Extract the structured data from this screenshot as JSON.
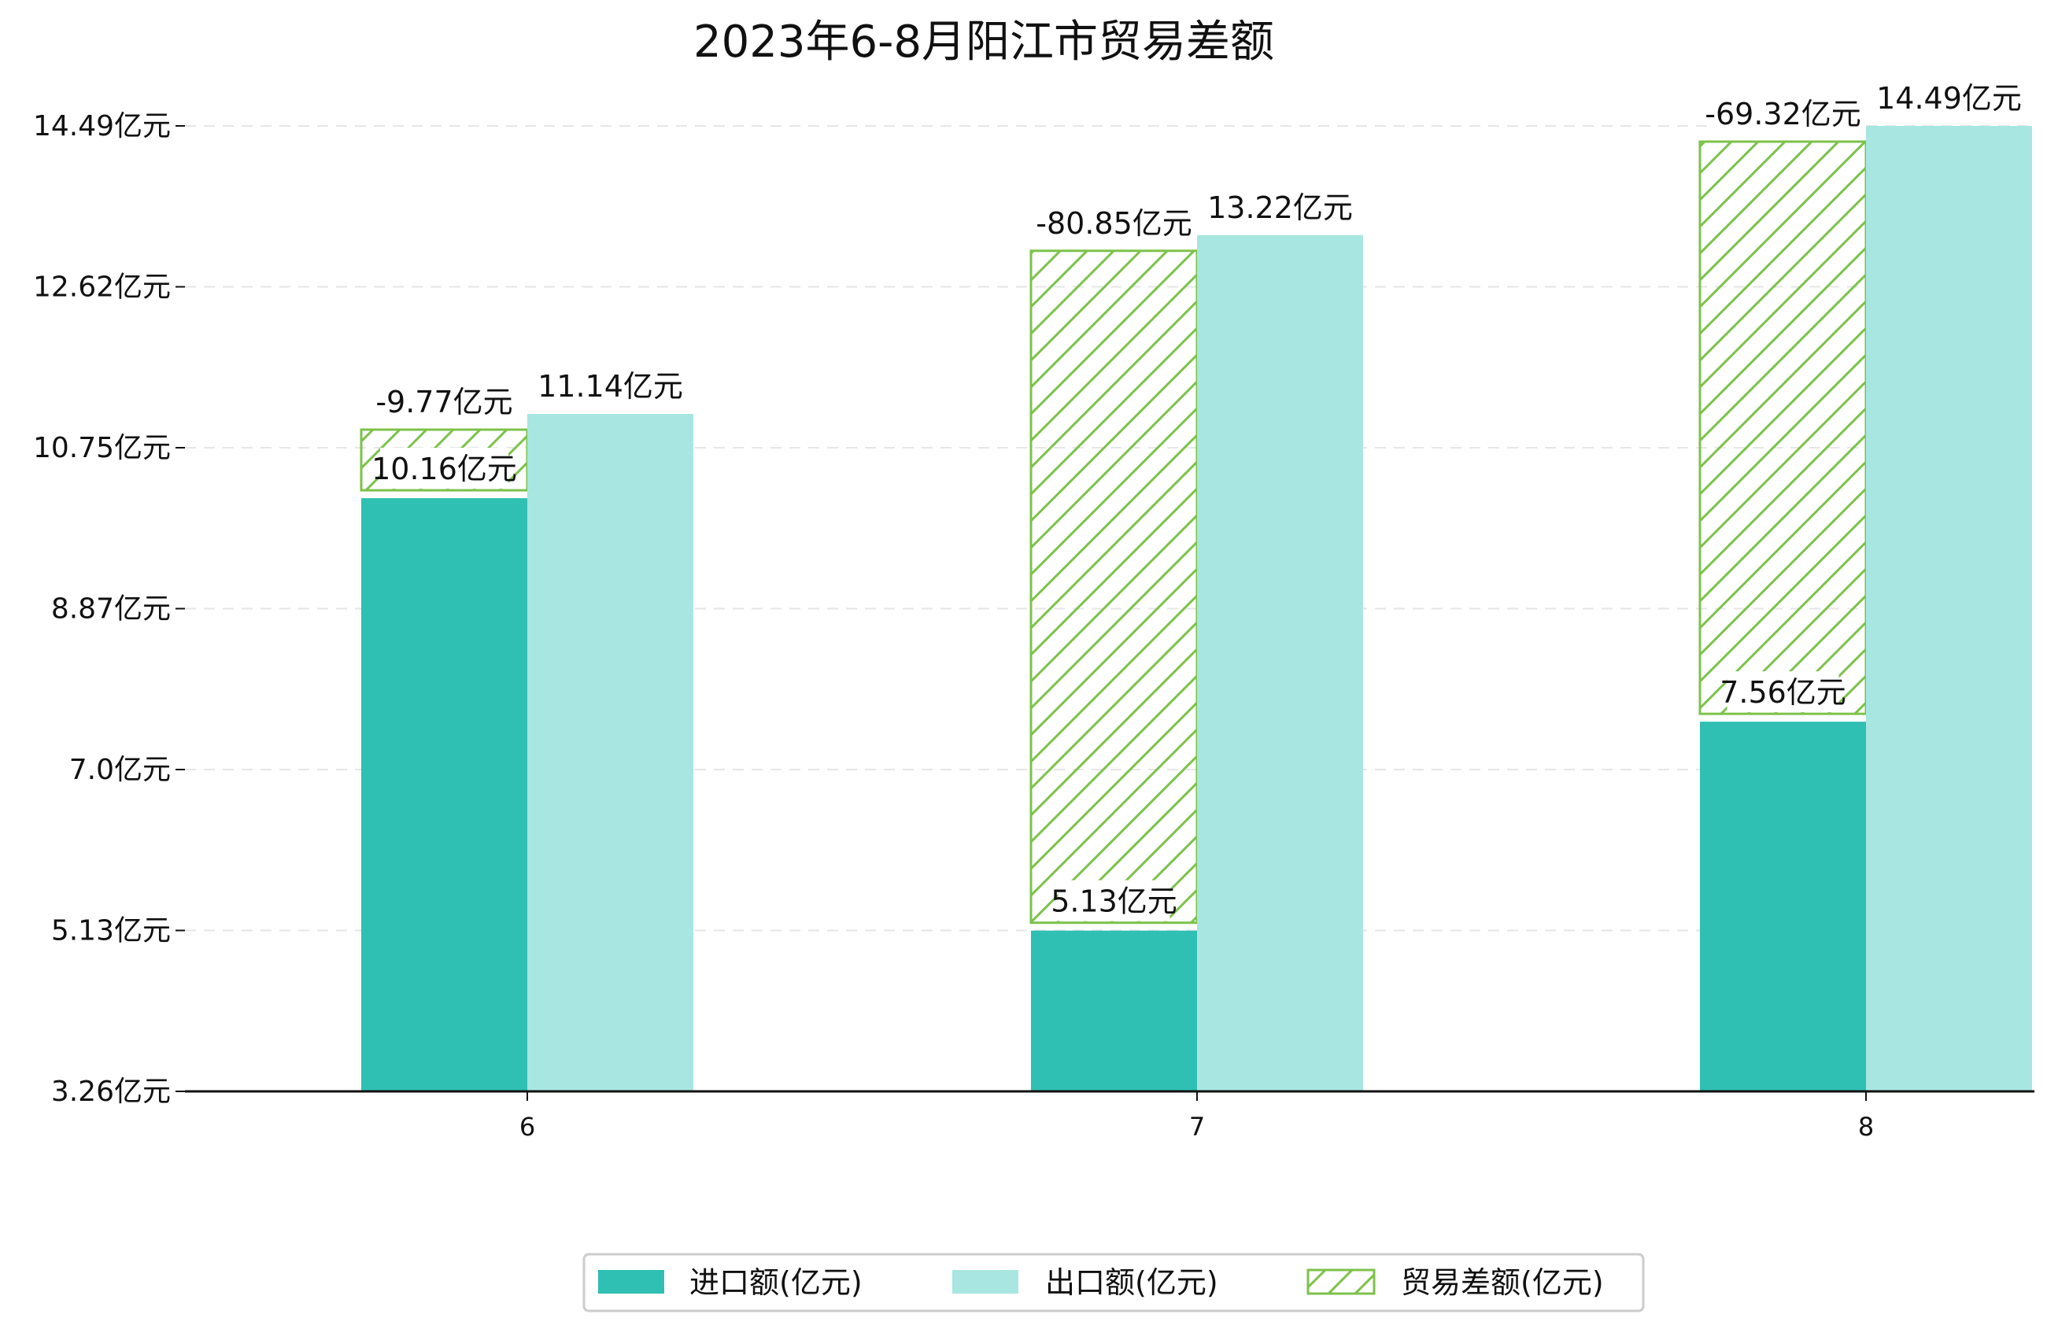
{
  "chart_data": {
    "type": "bar",
    "title": "2023年6-8月阳江市贸易差额",
    "categories": [
      "6",
      "7",
      "8"
    ],
    "y_ticks": [
      "3.26亿元",
      "5.13亿元",
      "7.0亿元",
      "8.87亿元",
      "10.75亿元",
      "12.62亿元",
      "14.49亿元"
    ],
    "ylim": [
      3.26,
      14.49
    ],
    "grid": true,
    "legend_position": "bottom-center",
    "series": [
      {
        "name": "进口额(亿元)",
        "color": "#2fbfb3",
        "values": [
          10.16,
          5.13,
          7.56
        ],
        "labels": [
          "10.16亿元",
          "5.13亿元",
          "7.56亿元"
        ]
      },
      {
        "name": "出口额(亿元)",
        "color": "#a8e6e1",
        "values": [
          11.14,
          13.22,
          14.49
        ],
        "labels": [
          "11.14亿元",
          "13.22亿元",
          "14.49亿元"
        ]
      },
      {
        "name": "贸易差额(亿元)",
        "color": "#7dc24b",
        "pattern": "hatch",
        "values": [
          -9.77,
          -80.85,
          -69.32
        ],
        "labels": [
          "-9.77亿元",
          "-80.85亿元",
          "-69.32亿元"
        ]
      }
    ]
  }
}
